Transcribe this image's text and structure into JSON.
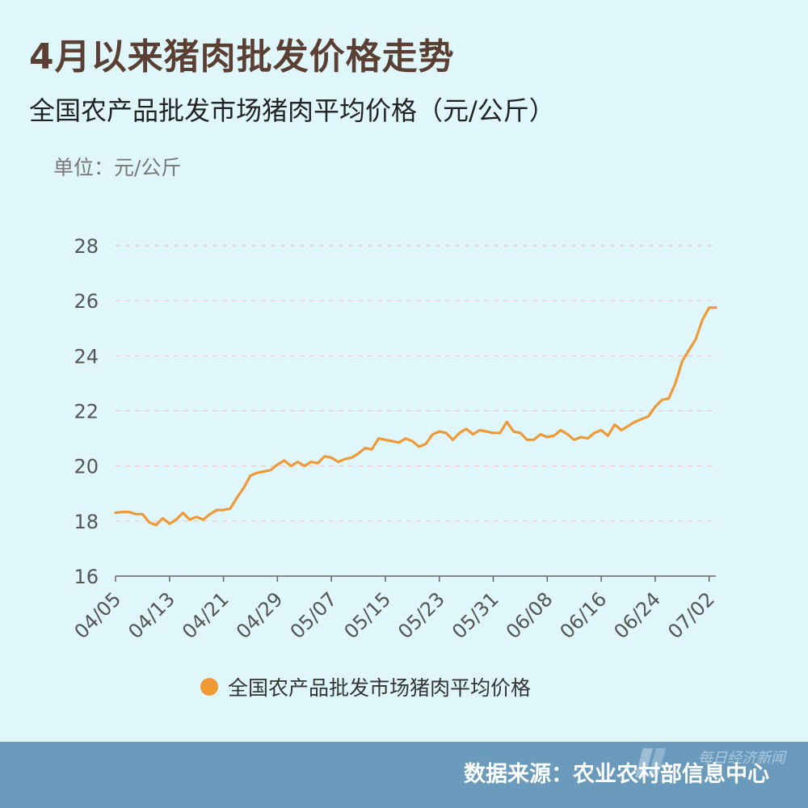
{
  "title": "4月以来猪肉批发价格走势",
  "subtitle": "全国农产品批发市场猪肉平均价格（元/公斤）",
  "unit_label": "单位：元/公斤",
  "legend_label": "全国农产品批发市场猪肉平均价格",
  "footer": {
    "source": "数据来源：农业农村部信息中心",
    "watermark": "每日经济新闻"
  },
  "colors": {
    "background": "#dff6fb",
    "line": "#f09a37",
    "footer": "#6a9bbd"
  },
  "chart_data": {
    "type": "line",
    "title": "全国农产品批发市场猪肉平均价格（元/公斤）",
    "ylabel": "单位：元/公斤",
    "ylim": [
      16,
      28
    ],
    "yticks": [
      16,
      18,
      20,
      22,
      24,
      26,
      28
    ],
    "xticks": [
      "04/05",
      "04/13",
      "04/21",
      "04/29",
      "05/07",
      "05/15",
      "05/23",
      "05/31",
      "06/08",
      "06/16",
      "06/24",
      "07/02"
    ],
    "grid": "horizontal dashed",
    "legend": "bottom-center",
    "series": [
      {
        "name": "全国农产品批发市场猪肉平均价格",
        "x": [
          "04/05",
          "04/06",
          "04/07",
          "04/08",
          "04/09",
          "04/10",
          "04/11",
          "04/12",
          "04/13",
          "04/14",
          "04/15",
          "04/16",
          "04/17",
          "04/18",
          "04/19",
          "04/20",
          "04/21",
          "04/22",
          "04/23",
          "04/24",
          "04/25",
          "04/26",
          "04/27",
          "04/28",
          "04/29",
          "04/30",
          "05/01",
          "05/02",
          "05/03",
          "05/04",
          "05/05",
          "05/06",
          "05/07",
          "05/08",
          "05/09",
          "05/10",
          "05/11",
          "05/12",
          "05/13",
          "05/14",
          "05/15",
          "05/16",
          "05/17",
          "05/18",
          "05/19",
          "05/20",
          "05/21",
          "05/22",
          "05/23",
          "05/24",
          "05/25",
          "05/26",
          "05/27",
          "05/28",
          "05/29",
          "05/30",
          "05/31",
          "06/01",
          "06/02",
          "06/03",
          "06/04",
          "06/05",
          "06/06",
          "06/07",
          "06/08",
          "06/09",
          "06/10",
          "06/11",
          "06/12",
          "06/13",
          "06/14",
          "06/15",
          "06/16",
          "06/17",
          "06/18",
          "06/19",
          "06/20",
          "06/21",
          "06/22",
          "06/23",
          "06/24",
          "06/25",
          "06/26",
          "06/27",
          "06/28",
          "06/29",
          "06/30",
          "07/01",
          "07/02",
          "07/03"
        ],
        "values": [
          18.3,
          18.33,
          18.33,
          18.25,
          18.25,
          17.95,
          17.85,
          18.1,
          17.9,
          18.05,
          18.3,
          18.05,
          18.15,
          18.05,
          18.25,
          18.4,
          18.4,
          18.45,
          18.85,
          19.2,
          19.65,
          19.75,
          19.8,
          19.85,
          20.05,
          20.2,
          20.0,
          20.15,
          20.0,
          20.15,
          20.1,
          20.35,
          20.3,
          20.15,
          20.25,
          20.3,
          20.45,
          20.65,
          20.6,
          21.0,
          20.95,
          20.9,
          20.85,
          21.0,
          20.9,
          20.7,
          20.8,
          21.15,
          21.25,
          21.2,
          20.95,
          21.2,
          21.35,
          21.15,
          21.3,
          21.25,
          21.2,
          21.2,
          21.6,
          21.25,
          21.2,
          20.95,
          20.95,
          21.15,
          21.05,
          21.1,
          21.3,
          21.15,
          20.95,
          21.05,
          21.0,
          21.2,
          21.3,
          21.1,
          21.5,
          21.3,
          21.45,
          21.6,
          21.7,
          21.8,
          22.15,
          22.4,
          22.45,
          23.0,
          23.8,
          24.2,
          24.6,
          25.3,
          25.75,
          25.75
        ]
      }
    ]
  }
}
